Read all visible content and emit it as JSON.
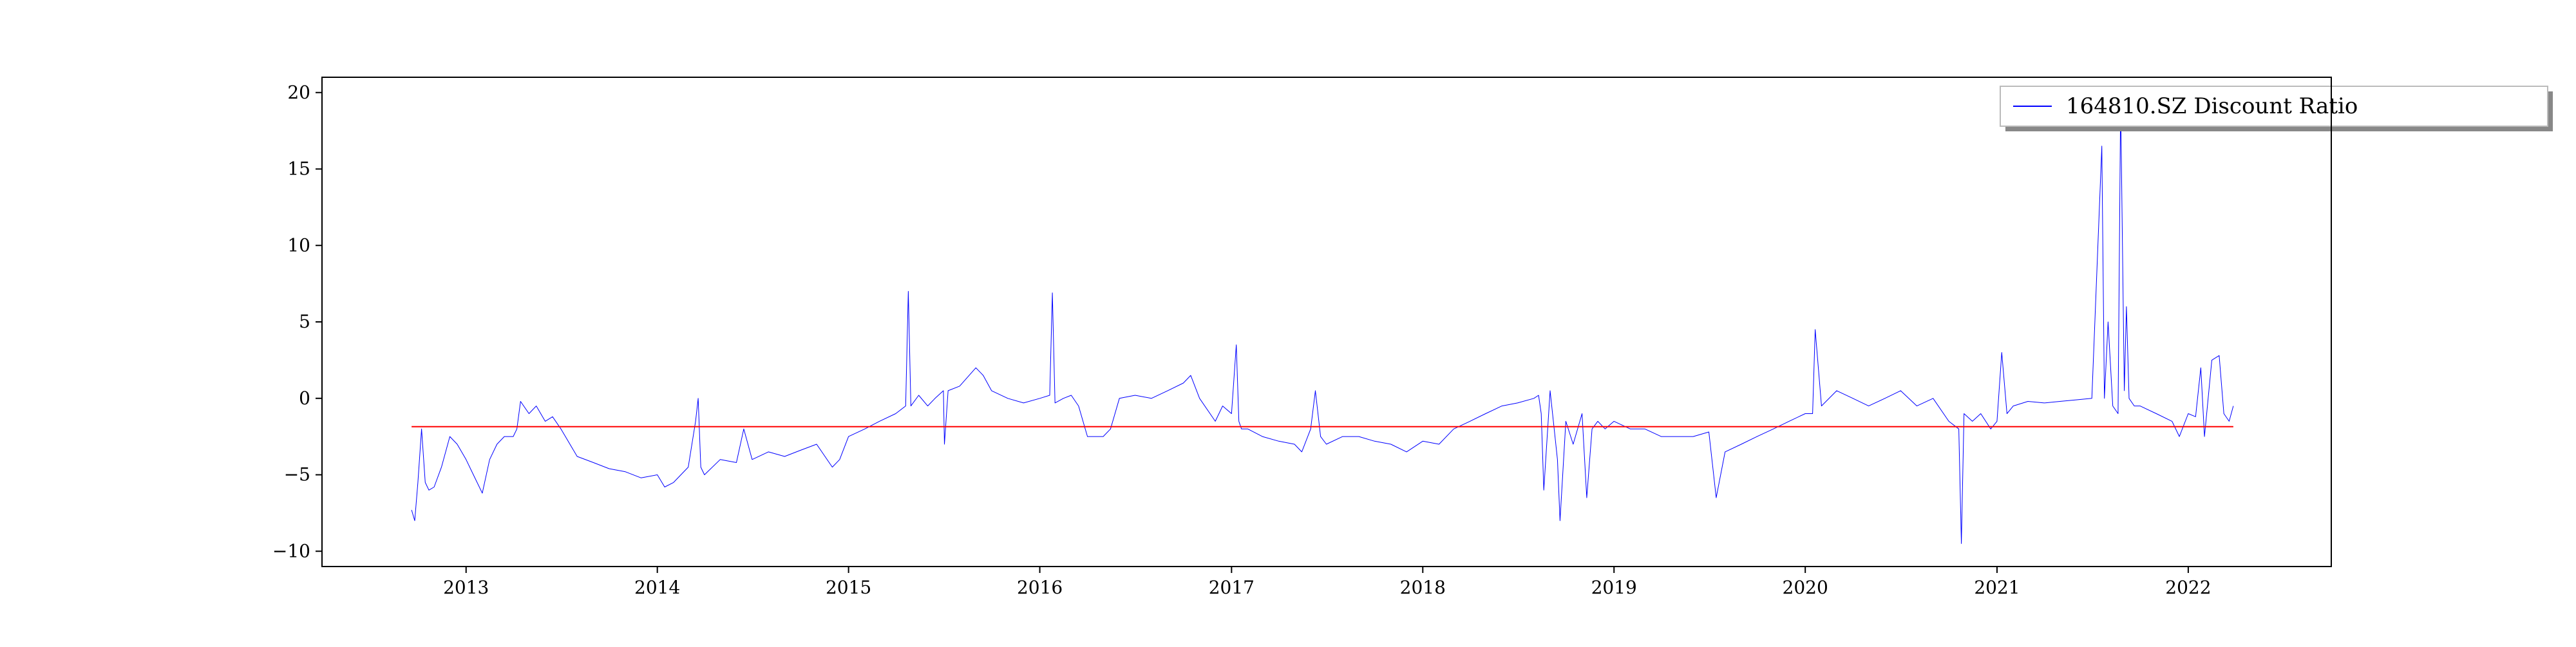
{
  "chart_data": {
    "type": "line",
    "title": "",
    "xlabel": "",
    "ylabel": "",
    "x_ticks": [
      "2013",
      "2014",
      "2015",
      "2016",
      "2017",
      "2018",
      "2019",
      "2020",
      "2021",
      "2022"
    ],
    "y_ticks": [
      20,
      15,
      10,
      5,
      0,
      -5,
      -10
    ],
    "ylim": [
      -11,
      21
    ],
    "xlim": [
      "2012-04-01",
      "2022-10-01"
    ],
    "grid": false,
    "legend_position": "top-right",
    "series": [
      {
        "name": "164810.SZ Discount Ratio",
        "color": "#0000ff",
        "x": [
          "2012-09-19",
          "2012-09-25",
          "2012-10-01",
          "2012-10-08",
          "2012-10-15",
          "2012-10-22",
          "2012-11-01",
          "2012-11-15",
          "2012-12-01",
          "2012-12-15",
          "2013-01-01",
          "2013-01-15",
          "2013-02-01",
          "2013-02-15",
          "2013-03-01",
          "2013-03-15",
          "2013-04-01",
          "2013-04-08",
          "2013-04-15",
          "2013-05-01",
          "2013-05-15",
          "2013-06-01",
          "2013-06-15",
          "2013-07-01",
          "2013-08-01",
          "2013-09-01",
          "2013-10-01",
          "2013-11-01",
          "2013-12-01",
          "2014-01-01",
          "2014-01-15",
          "2014-02-01",
          "2014-03-01",
          "2014-03-15",
          "2014-03-20",
          "2014-03-25",
          "2014-04-01",
          "2014-05-01",
          "2014-06-01",
          "2014-06-15",
          "2014-07-01",
          "2014-08-01",
          "2014-09-01",
          "2014-10-01",
          "2014-11-01",
          "2014-12-01",
          "2014-12-15",
          "2015-01-01",
          "2015-02-01",
          "2015-03-01",
          "2015-04-01",
          "2015-04-20",
          "2015-04-25",
          "2015-04-30",
          "2015-05-15",
          "2015-06-01",
          "2015-06-15",
          "2015-07-01",
          "2015-07-03",
          "2015-07-10",
          "2015-08-01",
          "2015-09-01",
          "2015-09-15",
          "2015-10-01",
          "2015-11-01",
          "2015-12-01",
          "2016-01-01",
          "2016-01-20",
          "2016-01-25",
          "2016-01-30",
          "2016-02-15",
          "2016-03-01",
          "2016-03-15",
          "2016-04-01",
          "2016-05-01",
          "2016-05-15",
          "2016-06-01",
          "2016-07-01",
          "2016-08-01",
          "2016-09-01",
          "2016-10-01",
          "2016-10-15",
          "2016-11-01",
          "2016-12-01",
          "2016-12-15",
          "2017-01-01",
          "2017-01-10",
          "2017-01-15",
          "2017-01-20",
          "2017-02-01",
          "2017-03-01",
          "2017-04-01",
          "2017-05-01",
          "2017-05-15",
          "2017-06-01",
          "2017-06-10",
          "2017-06-20",
          "2017-07-01",
          "2017-08-01",
          "2017-09-01",
          "2017-10-01",
          "2017-11-01",
          "2017-12-01",
          "2018-01-01",
          "2018-02-01",
          "2018-03-01",
          "2018-04-01",
          "2018-05-01",
          "2018-06-01",
          "2018-07-01",
          "2018-08-01",
          "2018-08-10",
          "2018-08-15",
          "2018-08-20",
          "2018-09-01",
          "2018-09-15",
          "2018-09-20",
          "2018-10-01",
          "2018-10-15",
          "2018-11-01",
          "2018-11-10",
          "2018-11-20",
          "2018-12-01",
          "2018-12-15",
          "2019-01-01",
          "2019-02-01",
          "2019-03-01",
          "2019-04-01",
          "2019-05-01",
          "2019-06-01",
          "2019-07-01",
          "2019-07-15",
          "2019-08-01",
          "2019-09-01",
          "2019-10-01",
          "2019-11-01",
          "2019-12-01",
          "2020-01-01",
          "2020-01-15",
          "2020-01-20",
          "2020-02-01",
          "2020-03-01",
          "2020-04-01",
          "2020-05-01",
          "2020-06-01",
          "2020-07-01",
          "2020-08-01",
          "2020-09-01",
          "2020-10-01",
          "2020-10-20",
          "2020-10-25",
          "2020-10-30",
          "2020-11-15",
          "2020-12-01",
          "2020-12-20",
          "2021-01-01",
          "2021-01-10",
          "2021-01-20",
          "2021-02-01",
          "2021-03-01",
          "2021-04-01",
          "2021-05-01",
          "2021-06-01",
          "2021-07-01",
          "2021-07-20",
          "2021-07-25",
          "2021-08-01",
          "2021-08-10",
          "2021-08-20",
          "2021-08-25",
          "2021-09-01",
          "2021-09-05",
          "2021-09-10",
          "2021-09-20",
          "2021-10-01",
          "2021-11-01",
          "2021-12-01",
          "2021-12-15",
          "2022-01-01",
          "2022-01-15",
          "2022-01-25",
          "2022-02-01",
          "2022-02-15",
          "2022-03-01",
          "2022-03-10",
          "2022-03-20",
          "2022-03-28"
        ],
        "y": [
          -7.3,
          -8.0,
          -5.5,
          -2.0,
          -5.5,
          -6.0,
          -5.8,
          -4.5,
          -2.5,
          -3.0,
          -4.0,
          -5.0,
          -6.2,
          -4.0,
          -3.0,
          -2.5,
          -2.5,
          -2.0,
          -0.2,
          -1.0,
          -0.5,
          -1.5,
          -1.2,
          -2.0,
          -3.8,
          -4.2,
          -4.6,
          -4.8,
          -5.2,
          -5.0,
          -5.8,
          -5.5,
          -4.5,
          -1.5,
          0.0,
          -4.5,
          -5.0,
          -4.0,
          -4.2,
          -2.0,
          -4.0,
          -3.5,
          -3.8,
          -3.4,
          -3.0,
          -4.5,
          -4.0,
          -2.5,
          -2.0,
          -1.5,
          -1.0,
          -0.5,
          7.0,
          -0.5,
          0.2,
          -0.5,
          0.0,
          0.5,
          -3.0,
          0.5,
          0.8,
          2.0,
          1.5,
          0.5,
          0.0,
          -0.3,
          0.0,
          0.2,
          6.9,
          -0.3,
          0.0,
          0.2,
          -0.5,
          -2.5,
          -2.5,
          -2.0,
          0.0,
          0.2,
          0.0,
          0.5,
          1.0,
          1.5,
          0.0,
          -1.5,
          -0.5,
          -1.0,
          3.5,
          -1.5,
          -2.0,
          -2.0,
          -2.5,
          -2.8,
          -3.0,
          -3.5,
          -2.0,
          0.5,
          -2.5,
          -3.0,
          -2.5,
          -2.5,
          -2.8,
          -3.0,
          -3.5,
          -2.8,
          -3.0,
          -2.0,
          -1.5,
          -1.0,
          -0.5,
          -0.3,
          0.0,
          0.2,
          -1.0,
          -6.0,
          0.5,
          -4.0,
          -8.0,
          -1.5,
          -3.0,
          -1.0,
          -6.5,
          -2.0,
          -1.5,
          -2.0,
          -1.5,
          -2.0,
          -2.0,
          -2.5,
          -2.5,
          -2.5,
          -2.2,
          -6.5,
          -3.5,
          -3.0,
          -2.5,
          -2.0,
          -1.5,
          -1.0,
          -1.0,
          4.5,
          -0.5,
          0.5,
          0.0,
          -0.5,
          0.0,
          0.5,
          -0.5,
          0.0,
          -1.5,
          -2.0,
          -9.5,
          -1.0,
          -1.5,
          -1.0,
          -2.0,
          -1.5,
          3.0,
          -1.0,
          -0.5,
          -0.2,
          -0.3,
          -0.2,
          -0.1,
          0.0,
          16.5,
          0.0,
          5.0,
          -0.5,
          -1.0,
          19.5,
          0.5,
          6.0,
          0.0,
          -0.5,
          -0.5,
          -1.0,
          -1.5,
          -2.5,
          -1.0,
          -1.2,
          2.0,
          -2.5,
          2.5,
          2.8,
          -1.0,
          -1.5,
          -0.5
        ],
        "line_width": 1
      },
      {
        "name": "",
        "color": "#ff0000",
        "x": [
          "2012-09-19",
          "2022-03-28"
        ],
        "y": [
          -1.85,
          -1.85
        ],
        "line_width": 2
      }
    ],
    "legend_entries": [
      "164810.SZ Discount Ratio"
    ]
  }
}
